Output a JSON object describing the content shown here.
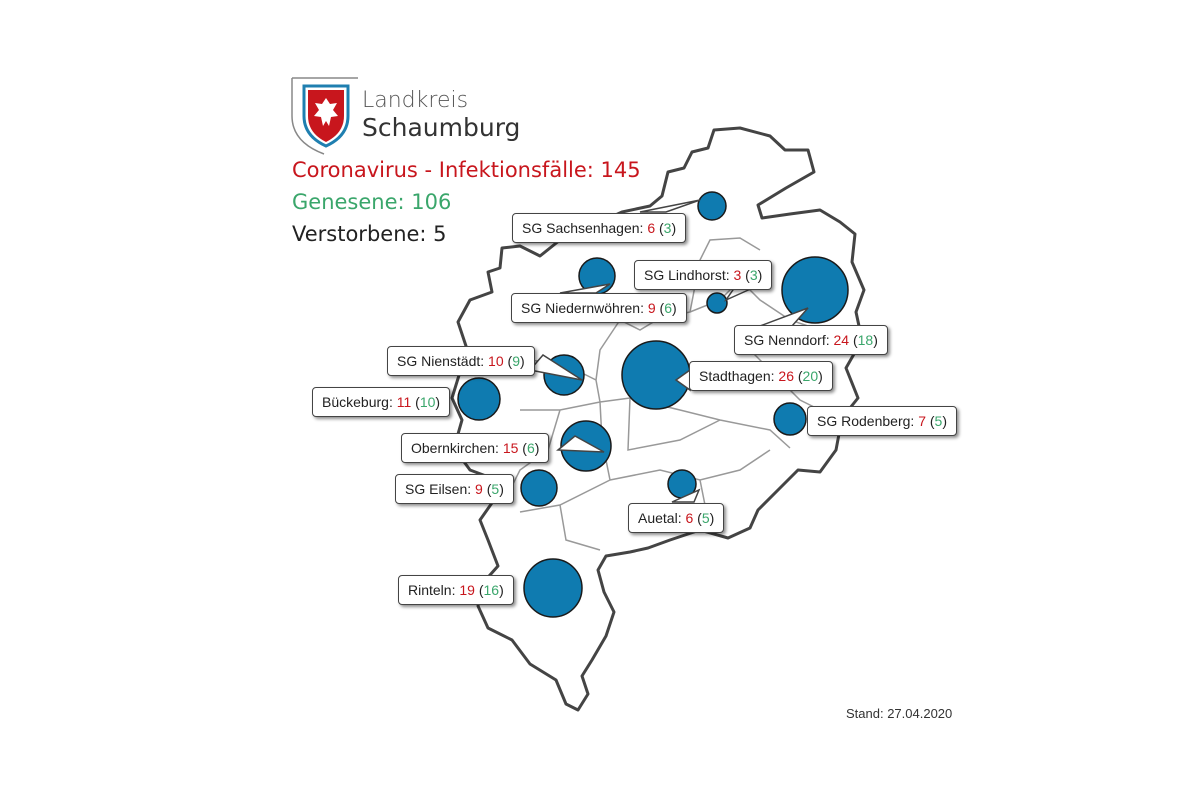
{
  "logo": {
    "line1": "Landkreis",
    "line2": "Schaumburg",
    "shield_color": "#c8161d",
    "frame_color": "#1f7fb0"
  },
  "summary": {
    "cases_text": "Coronavirus - Infektionsfälle: 145",
    "recovered_text": "Genesene: 106",
    "deaths_text": "Verstorbene: 5"
  },
  "colors": {
    "bubble": "#0f7bb0",
    "cases": "#c8161d",
    "recovered": "#3aa66b"
  },
  "municipalities": [
    {
      "id": "sachsenhagen",
      "name": "SG Sachsenhagen",
      "cases": "6",
      "recovered": "3"
    },
    {
      "id": "niedernwoehren",
      "name": "SG Niedernwöhren",
      "cases": "9",
      "recovered": "6"
    },
    {
      "id": "lindhorst",
      "name": "SG Lindhorst",
      "cases": "3",
      "recovered": "3"
    },
    {
      "id": "nenndorf",
      "name": "SG Nenndorf",
      "cases": "24",
      "recovered": "18"
    },
    {
      "id": "nienstaedt",
      "name": "SG Nienstädt",
      "cases": "10",
      "recovered": "9"
    },
    {
      "id": "stadthagen",
      "name": "Stadthagen",
      "cases": "26",
      "recovered": "20"
    },
    {
      "id": "bueckeburg",
      "name": "Bückeburg",
      "cases": "11",
      "recovered": "10"
    },
    {
      "id": "rodenberg",
      "name": "SG Rodenberg",
      "cases": "7",
      "recovered": "5"
    },
    {
      "id": "obernkirchen",
      "name": "Obernkirchen",
      "cases": "15",
      "recovered": "6"
    },
    {
      "id": "eilsen",
      "name": "SG Eilsen",
      "cases": "9",
      "recovered": "5"
    },
    {
      "id": "auetal",
      "name": "Auetal",
      "cases": "6",
      "recovered": "5"
    },
    {
      "id": "rinteln",
      "name": "Rinteln",
      "cases": "19",
      "recovered": "16"
    }
  ],
  "footer": {
    "stand": "Stand: 27.04.2020"
  }
}
